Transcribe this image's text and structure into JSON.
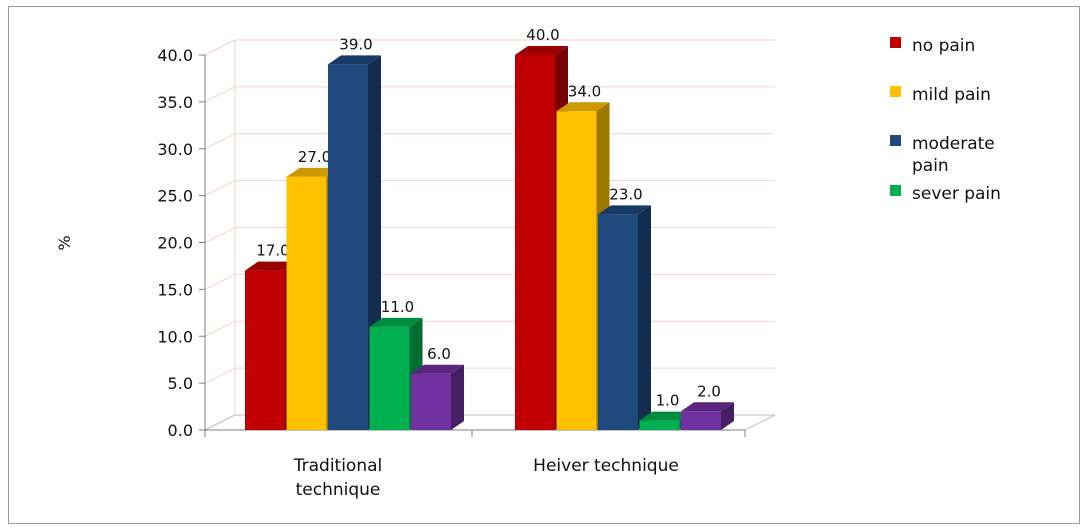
{
  "chart_data": {
    "type": "bar",
    "categories": [
      [
        "Traditional",
        "technique"
      ],
      [
        "Heiver technique"
      ]
    ],
    "series": [
      {
        "name": "no pain",
        "values": [
          17.0,
          40.0
        ],
        "color": "#c00000",
        "label_color": "#c00000"
      },
      {
        "name": "mild pain",
        "values": [
          27.0,
          34.0
        ],
        "color": "#ffc000",
        "label_color": "#ffc000"
      },
      {
        "name": "moderate pain",
        "legend_lines": [
          "moderate",
          "pain"
        ],
        "values": [
          39.0,
          23.0
        ],
        "color": "#1f497d",
        "label_color": "#1f497d"
      },
      {
        "name": "sever pain",
        "values": [
          11.0,
          1.0
        ],
        "color": "#00b050",
        "label_color": "#00b050"
      },
      {
        "name": "",
        "values": [
          6.0,
          2.0
        ],
        "color": "#7030a0",
        "label_color": null
      }
    ],
    "ylabel": "%",
    "ylim": [
      0,
      40
    ],
    "yticks": [
      "0.0",
      "5.0",
      "10.0",
      "15.0",
      "20.0",
      "25.0",
      "30.0",
      "35.0",
      "40.0"
    ],
    "data_labels": [
      [
        "17.0",
        "27.0",
        "39.0",
        "11.0",
        "6.0"
      ],
      [
        "40.0",
        "34.0",
        "23.0",
        "1.0",
        "2.0"
      ]
    ],
    "grid": true,
    "legend_position": "right",
    "style": "3d-column"
  }
}
